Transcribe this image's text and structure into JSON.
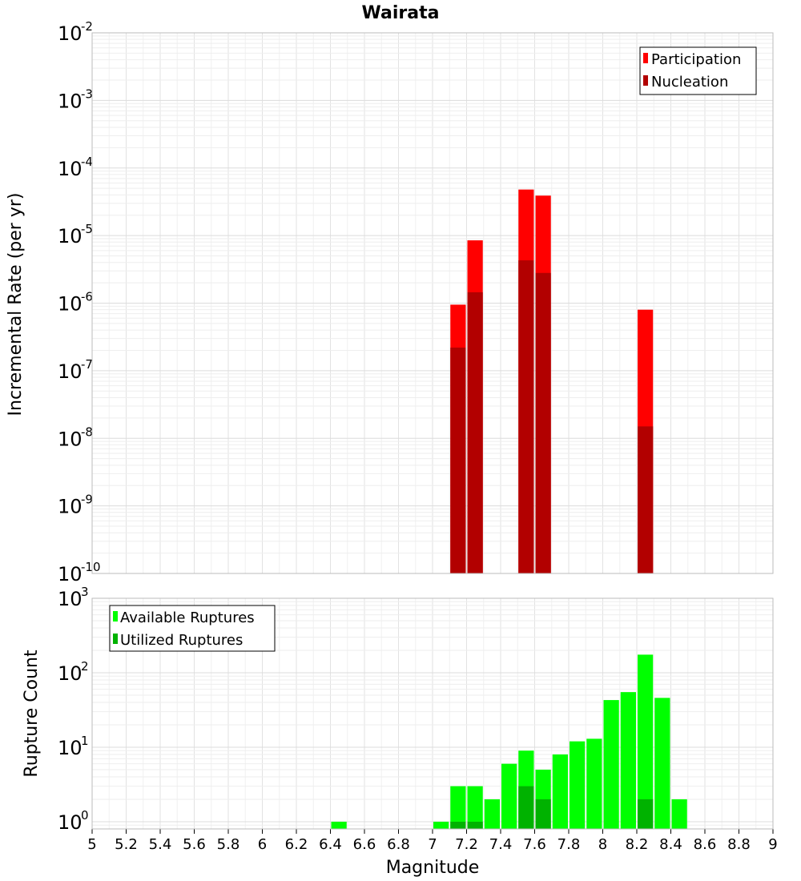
{
  "chart_data": [
    {
      "type": "bar",
      "title": "Wairata",
      "xlabel": "",
      "ylabel": "Incremental Rate (per yr)",
      "yscale": "log",
      "xlim": [
        5,
        9
      ],
      "ylim": [
        1e-10,
        0.01
      ],
      "bar_width": 0.1,
      "grid": true,
      "legend_position": "top-right",
      "y_ticks": [
        {
          "base": "10",
          "exp": "-10",
          "value": 1e-10
        },
        {
          "base": "10",
          "exp": "-9",
          "value": 1e-09
        },
        {
          "base": "10",
          "exp": "-8",
          "value": 1e-08
        },
        {
          "base": "10",
          "exp": "-7",
          "value": 1e-07
        },
        {
          "base": "10",
          "exp": "-6",
          "value": 1e-06
        },
        {
          "base": "10",
          "exp": "-5",
          "value": 1e-05
        },
        {
          "base": "10",
          "exp": "-4",
          "value": 0.0001
        },
        {
          "base": "10",
          "exp": "-3",
          "value": 0.001
        },
        {
          "base": "10",
          "exp": "-2",
          "value": 0.01
        }
      ],
      "series": [
        {
          "name": "Participation",
          "color": "#ff0000",
          "x": [
            7.15,
            7.25,
            7.55,
            7.65,
            8.25
          ],
          "values": [
            9.5e-07,
            8.5e-06,
            4.8e-05,
            3.9e-05,
            8e-07
          ]
        },
        {
          "name": "Nucleation",
          "color": "#b20000",
          "x": [
            7.15,
            7.25,
            7.55,
            7.65,
            8.25
          ],
          "values": [
            2.2e-07,
            1.45e-06,
            4.3e-06,
            2.8e-06,
            1.5e-08
          ]
        }
      ]
    },
    {
      "type": "bar",
      "title": "",
      "xlabel": "Magnitude",
      "ylabel": "Rupture Count",
      "yscale": "log",
      "xlim": [
        5,
        9
      ],
      "ylim": [
        0.8,
        1000
      ],
      "bar_width": 0.1,
      "grid": true,
      "legend_position": "top-left",
      "x_ticks": [
        "5",
        "5.2",
        "5.4",
        "5.6",
        "5.8",
        "6",
        "6.2",
        "6.4",
        "6.6",
        "6.8",
        "7",
        "7.2",
        "7.4",
        "7.6",
        "7.8",
        "8",
        "8.2",
        "8.4",
        "8.6",
        "8.8",
        "9"
      ],
      "y_ticks": [
        {
          "base": "10",
          "exp": "0",
          "value": 1
        },
        {
          "base": "10",
          "exp": "1",
          "value": 10
        },
        {
          "base": "10",
          "exp": "2",
          "value": 100
        },
        {
          "base": "10",
          "exp": "3",
          "value": 1000
        }
      ],
      "series": [
        {
          "name": "Available Ruptures",
          "color": "#00ff00",
          "x": [
            6.45,
            7.05,
            7.15,
            7.25,
            7.35,
            7.45,
            7.55,
            7.65,
            7.75,
            7.85,
            7.95,
            8.05,
            8.15,
            8.25,
            8.35,
            8.45
          ],
          "values": [
            1,
            1,
            3,
            3,
            2,
            6,
            9,
            5,
            8,
            12,
            13,
            43,
            55,
            175,
            46,
            2
          ]
        },
        {
          "name": "Utilized Ruptures",
          "color": "#00b200",
          "x": [
            7.15,
            7.25,
            7.55,
            7.65,
            8.25
          ],
          "values": [
            1,
            1,
            3,
            2,
            2
          ]
        }
      ]
    }
  ]
}
